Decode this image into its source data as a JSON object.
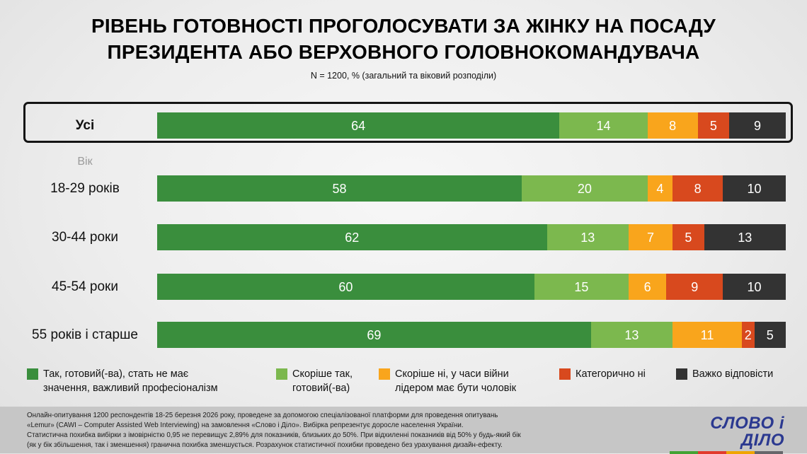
{
  "title": "РІВЕНЬ ГОТОВНОСТІ ПРОГОЛОСУВАТИ ЗА ЖІНКУ НА ПОСАДУ\nПРЕЗИДЕНТА АБО ВЕРХОВНОГО ГОЛОВНОКОМАНДУВАЧА",
  "subtitle": "N = 1200, % (загальний та віковий розподіли)",
  "group_label": "Вік",
  "chart_data": {
    "type": "bar",
    "subtype": "horizontal-stacked",
    "unit": "%",
    "title": "РІВЕНЬ ГОТОВНОСТІ ПРОГОЛОСУВАТИ ЗА ЖІНКУ НА ПОСАДУ ПРЕЗИДЕНТА АБО ВЕРХОВНОГО ГОЛОВНОКОМАНДУВАЧА",
    "note": "N = 1200, % (загальний та віковий розподіли)",
    "xlim": [
      0,
      100
    ],
    "legend_position": "bottom",
    "series_names": [
      "Так, готовий(-ва), стать не має значення, важливий професіоналізм",
      "Скоріше так, готовий(-ва)",
      "Скоріше ні, у часи війни лідером має бути чоловік",
      "Категорично ні",
      "Важко відповісти"
    ],
    "colors": [
      "#3a8e3d",
      "#7cb84e",
      "#f9a51c",
      "#d8491e",
      "#333333"
    ],
    "categories": [
      "Усі",
      "18-29 років",
      "30-44 роки",
      "45-54 роки",
      "55 років і старше"
    ],
    "rows": [
      {
        "label": "Усі",
        "highlighted": true,
        "values": [
          64,
          14,
          8,
          5,
          9
        ]
      },
      {
        "label": "18-29 років",
        "highlighted": false,
        "values": [
          58,
          20,
          4,
          8,
          10
        ]
      },
      {
        "label": "30-44 роки",
        "highlighted": false,
        "values": [
          62,
          13,
          7,
          5,
          13
        ]
      },
      {
        "label": "45-54 роки",
        "highlighted": false,
        "values": [
          60,
          15,
          6,
          9,
          10
        ]
      },
      {
        "label": "55 років і старше",
        "highlighted": false,
        "values": [
          69,
          13,
          11,
          2,
          5
        ]
      }
    ]
  },
  "legend": {
    "items": [
      {
        "color": "#3a8e3d",
        "label": "Так, готовий(-ва), стать не має\nзначення, важливий професіоналізм"
      },
      {
        "color": "#7cb84e",
        "label": "Скоріше так,\nготовий(-ва)"
      },
      {
        "color": "#f9a51c",
        "label": "Скоріше ні, у часи війни\nлідером має бути чоловік"
      },
      {
        "color": "#d8491e",
        "label": "Категорично ні"
      },
      {
        "color": "#333333",
        "label": "Важко відповісти"
      }
    ]
  },
  "footer": {
    "text": "Онлайн-опитування 1200 респондентів 18-25 березня 2026 року, проведене за допомогою спеціалізованої платформи для проведення опитувань\n«Lemur» (CAWI – Computer Assisted Web Interviewing) на замовлення «Слово і Діло». Вибірка репрезентує доросле населення України.\nСтатистична похибка вибірки з імовірністю 0,95 не перевищує 2,89% для показників, близьких до 50%. При відхиленні показників від 50% у будь-який бік\n(як у бік збільшення, так і зменшення) гранична похибка зменшується. Розрахунок статистичної похибки проведено без урахування дизайн-ефекту.",
    "logo_text": "СЛОВО і ДІЛО",
    "logo_underline_colors": [
      "#43a334",
      "#e23a2c",
      "#f0a500",
      "#65666a"
    ]
  }
}
